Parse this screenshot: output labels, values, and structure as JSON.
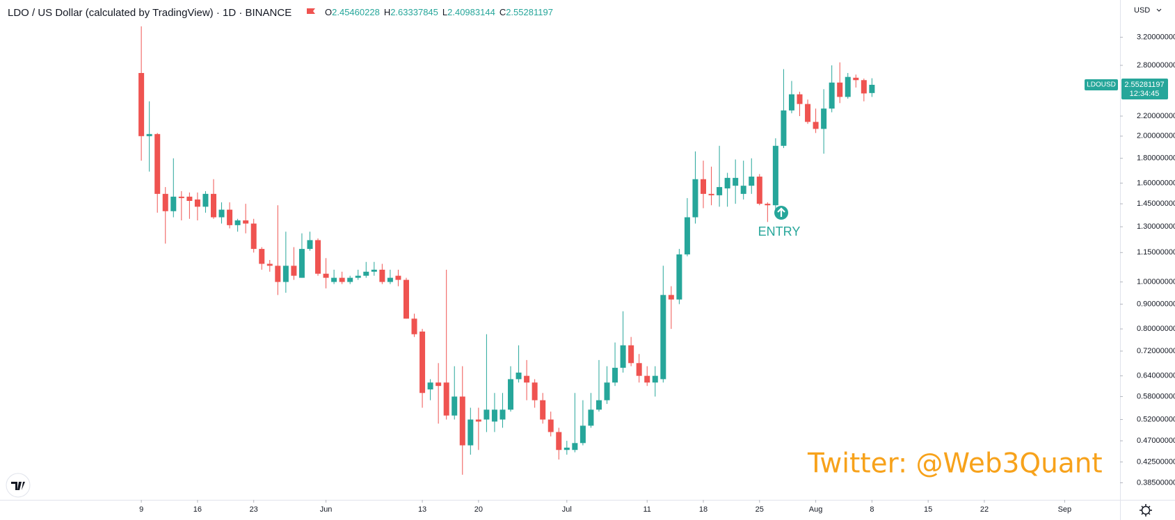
{
  "chart_data": {
    "type": "candlestick",
    "title": "LDO / US Dollar (calculated by TradingView) · 1D · BINANCE",
    "ohlc_labels": [
      "O",
      "H",
      "L",
      "C"
    ],
    "symbol": "LDOUSD",
    "countdown": "12:34:45",
    "currency": "USD",
    "annotation": "ENTRY",
    "watermark": "Twitter: @Web3Quant",
    "up_color": "#26a69a",
    "down_color": "#ef5350",
    "log_scale": true,
    "grid": false,
    "xlim": [
      -17.6,
      121.9
    ],
    "xticks": [
      {
        "value": 0,
        "label": "9"
      },
      {
        "value": 7,
        "label": "16"
      },
      {
        "value": 14,
        "label": "23"
      },
      {
        "value": 23,
        "label": "Jun"
      },
      {
        "value": 35,
        "label": "13"
      },
      {
        "value": 42,
        "label": "20"
      },
      {
        "value": 53,
        "label": "Jul"
      },
      {
        "value": 63,
        "label": "11"
      },
      {
        "value": 70,
        "label": "18"
      },
      {
        "value": 77,
        "label": "25"
      },
      {
        "value": 84,
        "label": "Aug"
      },
      {
        "value": 91,
        "label": "8"
      },
      {
        "value": 98,
        "label": "15"
      },
      {
        "value": 105,
        "label": "22"
      },
      {
        "value": 115,
        "label": "Sep"
      }
    ],
    "ylim": [
      0.355,
      3.82
    ],
    "yticks": [
      {
        "value": 3.2,
        "label": "3.20000000"
      },
      {
        "value": 2.8,
        "label": "2.80000000"
      },
      {
        "value": 2.2,
        "label": "2.20000000"
      },
      {
        "value": 2.0,
        "label": "2.00000000"
      },
      {
        "value": 1.8,
        "label": "1.80000000"
      },
      {
        "value": 1.6,
        "label": "1.60000000"
      },
      {
        "value": 1.45,
        "label": "1.45000000"
      },
      {
        "value": 1.3,
        "label": "1.30000000"
      },
      {
        "value": 1.15,
        "label": "1.15000000"
      },
      {
        "value": 1.0,
        "label": "1.00000000"
      },
      {
        "value": 0.9,
        "label": "0.90000000"
      },
      {
        "value": 0.8,
        "label": "0.80000000"
      },
      {
        "value": 0.72,
        "label": "0.72000000"
      },
      {
        "value": 0.64,
        "label": "0.64000000"
      },
      {
        "value": 0.58,
        "label": "0.58000000"
      },
      {
        "value": 0.52,
        "label": "0.52000000"
      },
      {
        "value": 0.47,
        "label": "0.47000000"
      },
      {
        "value": 0.425,
        "label": "0.42500000"
      },
      {
        "value": 0.385,
        "label": "0.38500000"
      }
    ],
    "open": [
      2.7,
      2.0,
      2.02,
      1.52,
      1.4,
      1.5,
      1.5,
      1.48,
      1.43,
      1.52,
      1.36,
      1.41,
      1.31,
      1.34,
      1.32,
      1.17,
      1.09,
      1.08,
      1.0,
      1.08,
      1.02,
      1.17,
      1.22,
      1.04,
      1.0,
      1.02,
      1.0,
      1.02,
      1.03,
      1.05,
      1.06,
      1.0,
      1.03,
      1.01,
      0.84,
      0.79,
      0.6,
      0.62,
      0.62,
      0.53,
      0.58,
      0.46,
      0.52,
      0.52,
      0.515,
      0.52,
      0.545,
      0.63,
      0.64,
      0.62,
      0.57,
      0.52,
      0.49,
      0.45,
      0.45,
      0.465,
      0.505,
      0.545,
      0.57,
      0.62,
      0.665,
      0.74,
      0.68,
      0.64,
      0.62,
      0.63,
      0.94,
      0.92,
      1.14,
      1.36,
      1.63,
      1.52,
      1.51,
      1.56,
      1.58,
      1.52,
      1.58,
      1.65,
      1.45,
      1.44,
      1.91,
      2.26,
      2.44,
      2.33,
      2.14,
      2.07,
      2.28,
      2.58,
      2.41,
      2.64,
      2.61,
      2.45460228
    ],
    "high": [
      3.37,
      2.36,
      2.03,
      1.57,
      1.8,
      1.54,
      1.53,
      1.53,
      1.54,
      1.63,
      1.46,
      1.46,
      1.35,
      1.45,
      1.35,
      1.18,
      1.11,
      1.44,
      1.27,
      1.18,
      1.26,
      1.27,
      1.23,
      1.12,
      1.06,
      1.05,
      1.03,
      1.06,
      1.1,
      1.1,
      1.09,
      1.06,
      1.06,
      1.02,
      0.86,
      0.8,
      0.63,
      0.68,
      1.06,
      0.67,
      0.67,
      0.55,
      0.55,
      0.78,
      0.59,
      0.59,
      0.67,
      0.74,
      0.69,
      0.63,
      0.59,
      0.54,
      0.5,
      0.47,
      0.59,
      0.57,
      0.59,
      0.69,
      0.67,
      0.75,
      0.87,
      0.77,
      0.71,
      0.67,
      0.67,
      1.08,
      0.98,
      1.17,
      1.49,
      1.86,
      1.78,
      1.73,
      1.91,
      1.68,
      1.79,
      1.78,
      1.8,
      1.67,
      1.46,
      1.98,
      2.75,
      2.6,
      2.47,
      2.38,
      2.28,
      2.5,
      2.8,
      2.84,
      2.7,
      2.68,
      2.63,
      2.63337845
    ],
    "low": [
      1.78,
      1.69,
      1.39,
      1.2,
      1.36,
      1.34,
      1.35,
      1.34,
      1.39,
      1.35,
      1.32,
      1.29,
      1.27,
      1.26,
      1.15,
      1.06,
      1.05,
      0.94,
      0.95,
      1.01,
      1.02,
      1.16,
      1.03,
      0.97,
      0.99,
      0.99,
      0.99,
      1.01,
      1.02,
      1.03,
      0.99,
      0.99,
      0.98,
      0.84,
      0.77,
      0.55,
      0.57,
      0.51,
      0.52,
      0.52,
      0.4,
      0.44,
      0.45,
      0.49,
      0.49,
      0.5,
      0.54,
      0.62,
      0.57,
      0.55,
      0.51,
      0.48,
      0.43,
      0.44,
      0.445,
      0.46,
      0.5,
      0.54,
      0.56,
      0.61,
      0.65,
      0.67,
      0.62,
      0.61,
      0.58,
      0.62,
      0.8,
      0.9,
      1.13,
      1.32,
      1.42,
      1.44,
      1.43,
      1.43,
      1.45,
      1.48,
      1.52,
      1.44,
      1.33,
      1.4,
      1.89,
      2.23,
      2.2,
      2.12,
      2.03,
      1.84,
      2.24,
      2.34,
      2.39,
      2.52,
      2.36,
      2.40983144
    ],
    "close": [
      2.0,
      2.02,
      1.52,
      1.4,
      1.5,
      1.49,
      1.47,
      1.43,
      1.52,
      1.36,
      1.41,
      1.31,
      1.34,
      1.32,
      1.17,
      1.09,
      1.08,
      1.0,
      1.08,
      1.03,
      1.17,
      1.22,
      1.04,
      1.02,
      1.02,
      1.0,
      1.02,
      1.03,
      1.05,
      1.06,
      1.0,
      1.02,
      1.01,
      0.84,
      0.78,
      0.59,
      0.62,
      0.61,
      0.53,
      0.58,
      0.46,
      0.52,
      0.515,
      0.545,
      0.545,
      0.545,
      0.63,
      0.65,
      0.62,
      0.57,
      0.52,
      0.49,
      0.45,
      0.455,
      0.465,
      0.505,
      0.545,
      0.57,
      0.62,
      0.665,
      0.74,
      0.68,
      0.64,
      0.62,
      0.64,
      0.94,
      0.92,
      1.14,
      1.36,
      1.63,
      1.52,
      1.51,
      1.57,
      1.64,
      1.64,
      1.58,
      1.65,
      1.45,
      1.44,
      1.91,
      2.26,
      2.44,
      2.33,
      2.14,
      2.07,
      2.28,
      2.58,
      2.41,
      2.65,
      2.61,
      2.45,
      2.55281197
    ]
  }
}
